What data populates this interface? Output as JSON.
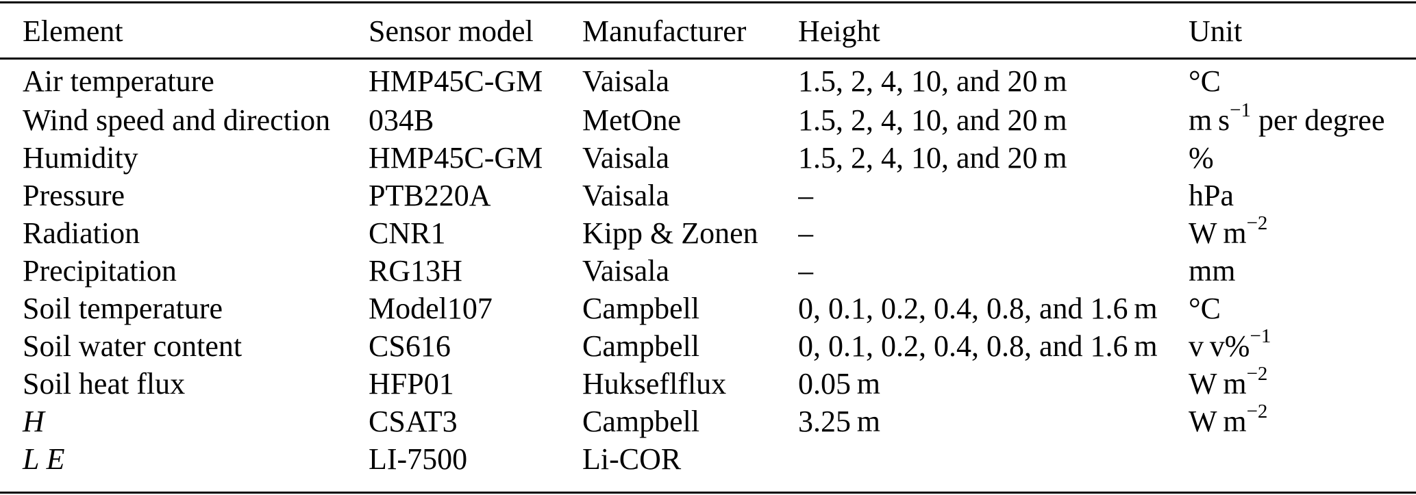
{
  "table": {
    "columns": [
      {
        "key": "element",
        "label": "Element"
      },
      {
        "key": "sensor_model",
        "label": "Sensor model"
      },
      {
        "key": "manufacturer",
        "label": "Manufacturer"
      },
      {
        "key": "height",
        "label": "Height"
      },
      {
        "key": "unit",
        "label": "Unit"
      }
    ],
    "rows": [
      {
        "element": "Air temperature",
        "italic": false,
        "sensor_model": "HMP45C-GM",
        "manufacturer": "Vaisala",
        "height": "1.5, 2, 4, 10, and 20 m",
        "unit": [
          {
            "t": "°C"
          }
        ]
      },
      {
        "element": "Wind speed and direction",
        "italic": false,
        "sensor_model": "034B",
        "manufacturer": "MetOne",
        "height": "1.5, 2, 4, 10, and 20 m",
        "unit": [
          {
            "t": "m s"
          },
          {
            "sup": "−1"
          },
          {
            "t": " per degree"
          }
        ]
      },
      {
        "element": "Humidity",
        "italic": false,
        "sensor_model": "HMP45C-GM",
        "manufacturer": "Vaisala",
        "height": "1.5, 2, 4, 10, and 20 m",
        "unit": [
          {
            "t": "%"
          }
        ]
      },
      {
        "element": "Pressure",
        "italic": false,
        "sensor_model": "PTB220A",
        "manufacturer": "Vaisala",
        "height": "–",
        "unit": [
          {
            "t": "hPa"
          }
        ]
      },
      {
        "element": "Radiation",
        "italic": false,
        "sensor_model": "CNR1",
        "manufacturer": "Kipp & Zonen",
        "height": "–",
        "unit": [
          {
            "t": "W m"
          },
          {
            "sup": "−2"
          }
        ]
      },
      {
        "element": "Precipitation",
        "italic": false,
        "sensor_model": "RG13H",
        "manufacturer": "Vaisala",
        "height": "–",
        "unit": [
          {
            "t": "mm"
          }
        ]
      },
      {
        "element": "Soil temperature",
        "italic": false,
        "sensor_model": "Model107",
        "manufacturer": "Campbell",
        "height": "0, 0.1, 0.2, 0.4, 0.8, and 1.6 m",
        "unit": [
          {
            "t": "°C"
          }
        ]
      },
      {
        "element": "Soil water content",
        "italic": false,
        "sensor_model": "CS616",
        "manufacturer": "Campbell",
        "height": "0, 0.1, 0.2, 0.4, 0.8, and 1.6 m",
        "unit": [
          {
            "t": "v v%"
          },
          {
            "sup": "−1"
          }
        ]
      },
      {
        "element": "Soil heat flux",
        "italic": false,
        "sensor_model": "HFP01",
        "manufacturer": "Hukseflflux",
        "height": "0.05 m",
        "unit": [
          {
            "t": "W m"
          },
          {
            "sup": "−2"
          }
        ]
      },
      {
        "element": "H",
        "italic": true,
        "sensor_model": "CSAT3",
        "manufacturer": "Campbell",
        "height": "3.25 m",
        "unit": [
          {
            "t": "W m"
          },
          {
            "sup": "−2"
          }
        ]
      },
      {
        "element": "L E",
        "italic": true,
        "sensor_model": "LI-7500",
        "manufacturer": "Li-COR",
        "height": "",
        "unit": []
      }
    ]
  }
}
